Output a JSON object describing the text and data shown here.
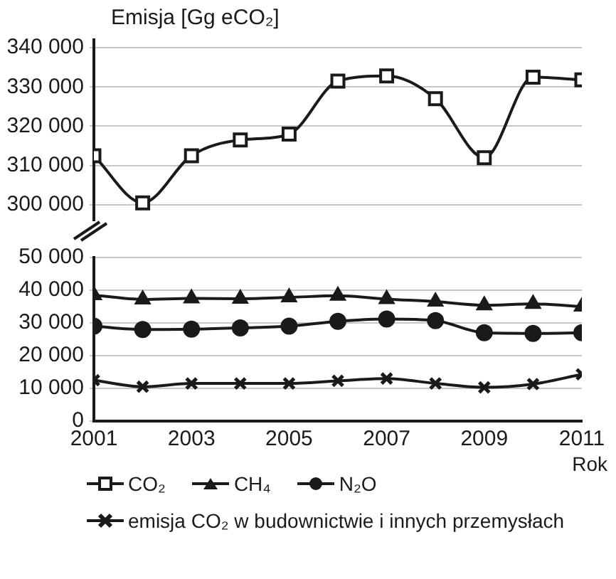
{
  "chart_data": [
    {
      "type": "line",
      "ylabel": "Emisja [Gg eCO₂]",
      "x": [
        2001,
        2002,
        2003,
        2004,
        2005,
        2006,
        2007,
        2008,
        2009,
        2010,
        2011
      ],
      "xlim": [
        2001,
        2011
      ],
      "ylim": [
        296000,
        342000
      ],
      "yticks": [
        {
          "value": 300000,
          "label": "300 000"
        },
        {
          "value": 310000,
          "label": "310 000"
        },
        {
          "value": 320000,
          "label": "320 000"
        },
        {
          "value": 330000,
          "label": "330 000"
        },
        {
          "value": 340000,
          "label": "340 000"
        }
      ],
      "tick_labels": "y",
      "grid": "y",
      "series": [
        {
          "name": "CO₂",
          "color": "#1a1a1a",
          "marker": "square",
          "line_style": "solid",
          "values": [
            312500,
            300500,
            312500,
            316500,
            318000,
            331500,
            332800,
            327000,
            312000,
            332500,
            331800
          ]
        }
      ]
    },
    {
      "type": "line",
      "xlabel": "Rok",
      "x": [
        2001,
        2002,
        2003,
        2004,
        2005,
        2006,
        2007,
        2008,
        2009,
        2010,
        2011
      ],
      "xlim": [
        2001,
        2011
      ],
      "xticks": [
        2001,
        2003,
        2005,
        2007,
        2009,
        2011
      ],
      "ylim": [
        0,
        50000
      ],
      "yticks": [
        0,
        {
          "value": 10000,
          "label": "10 000"
        },
        {
          "value": 20000,
          "label": "20 000"
        },
        {
          "value": 30000,
          "label": "30 000"
        },
        {
          "value": 40000,
          "label": "40 000"
        },
        {
          "value": 50000,
          "label": "50 000"
        }
      ],
      "grid": "y",
      "legend": "bottom",
      "series": [
        {
          "name": "CH₄",
          "color": "#1a1a1a",
          "marker": "triangle",
          "line_style": "solid",
          "values": [
            38500,
            37200,
            37500,
            37400,
            37800,
            38300,
            37300,
            36500,
            35400,
            35800,
            35000
          ]
        },
        {
          "name": "N₂O",
          "color": "#1a1a1a",
          "marker": "circle",
          "line_style": "solid",
          "values": [
            29000,
            28000,
            28100,
            28500,
            29000,
            30500,
            31200,
            30700,
            27000,
            26800,
            27000
          ]
        },
        {
          "name": "emisja CO₂ w budownictwie i innych przemysłach",
          "color": "#1a1a1a",
          "marker": "cross",
          "line_style": "solid",
          "values": [
            12500,
            10500,
            11500,
            11500,
            11500,
            12300,
            13000,
            11500,
            10300,
            11300,
            14300
          ]
        }
      ]
    }
  ]
}
